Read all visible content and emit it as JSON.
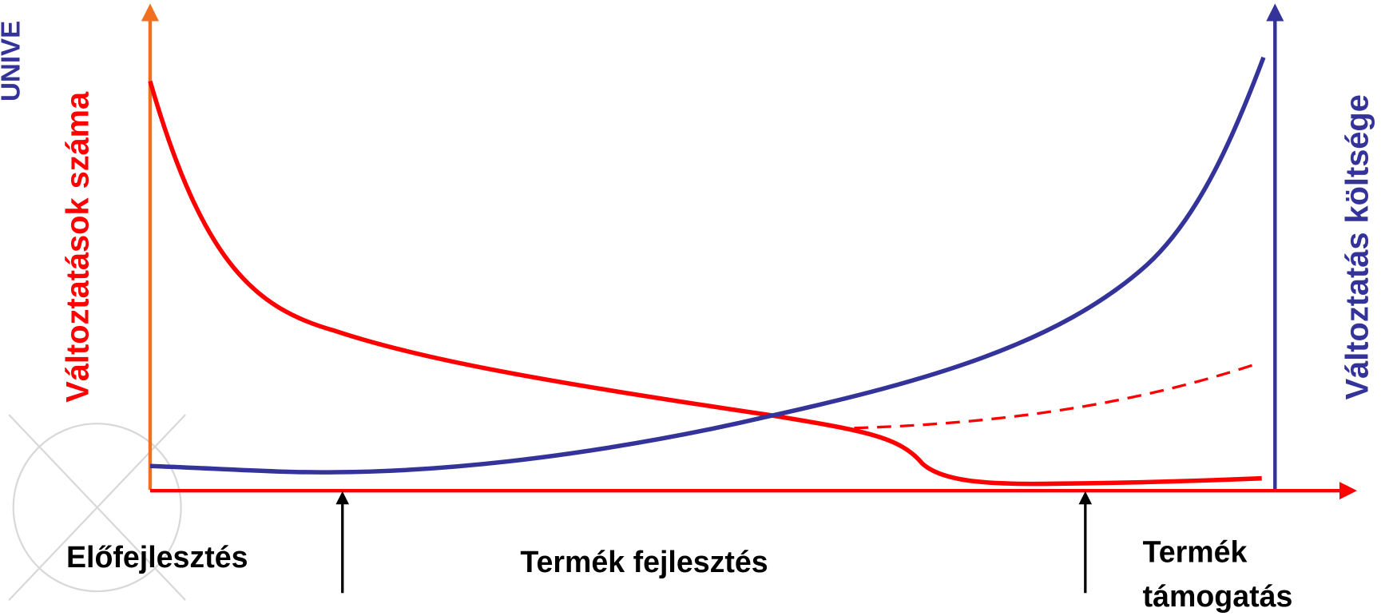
{
  "corner_text": "UNIVE",
  "left_axis_label": "Változtatások száma",
  "right_axis_label": "Változtatás költsége",
  "phases": [
    "Előfejlesztés",
    "Termék fejlesztés"
  ],
  "last_phase": [
    "Termék",
    "támogatás"
  ]
}
